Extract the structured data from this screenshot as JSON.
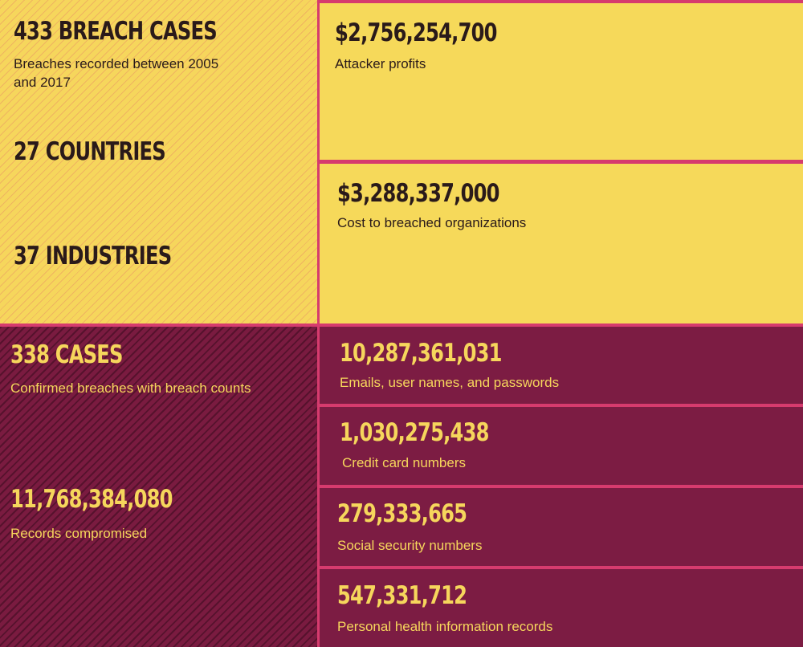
{
  "overview": {
    "cases": {
      "value": "433 BREACH CASES",
      "label": "Breaches recorded between 2005 and 2017"
    },
    "countries": "27 COUNTRIES",
    "industries": "37 INDUSTRIES"
  },
  "financial": {
    "profits": {
      "value": "$2,756,254,700",
      "label": "Attacker profits"
    },
    "cost": {
      "value": "$3,288,337,000",
      "label": "Cost to breached organizations"
    }
  },
  "confirmed": {
    "cases": {
      "value": "338 CASES",
      "label": "Confirmed breaches with breach counts"
    },
    "records": {
      "value": "11,768,384,080",
      "label": "Records compromised"
    }
  },
  "records_breakdown": [
    {
      "value": "10,287,361,031",
      "label": "Emails, user names, and passwords"
    },
    {
      "value": "1,030,275,438",
      "label": "Credit card numbers"
    },
    {
      "value": "279,333,665",
      "label": "Social security numbers"
    },
    {
      "value": "547,331,712",
      "label": "Personal health information records"
    }
  ],
  "colors": {
    "yellow": "#f6d65c",
    "maroon": "#7c1c43",
    "border_pink": "#d63b6e",
    "dark_text": "#2a1a1a"
  }
}
